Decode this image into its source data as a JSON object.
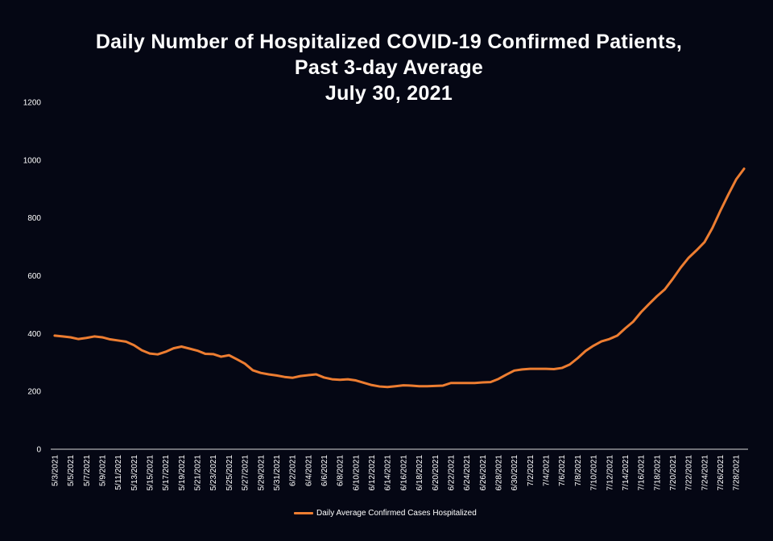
{
  "title_lines": [
    "Daily Number of Hospitalized COVID-19 Confirmed Patients,",
    "Past 3-day Average",
    "July 30, 2021"
  ],
  "chart_data": {
    "type": "line",
    "title": "Daily Number of Hospitalized COVID-19 Confirmed Patients, Past 3-day Average July 30, 2021",
    "xlabel": "",
    "ylabel": "",
    "ylim": [
      0,
      1200
    ],
    "yticks": [
      0,
      200,
      400,
      600,
      800,
      1000,
      1200
    ],
    "xtick_labels": [
      "5/3/2021",
      "5/5/2021",
      "5/7/2021",
      "5/9/2021",
      "5/11/2021",
      "5/13/2021",
      "5/15/2021",
      "5/17/2021",
      "5/19/2021",
      "5/21/2021",
      "5/23/2021",
      "5/25/2021",
      "5/27/2021",
      "5/29/2021",
      "5/31/2021",
      "6/2/2021",
      "6/4/2021",
      "6/6/2021",
      "6/8/2021",
      "6/10/2021",
      "6/12/2021",
      "6/14/2021",
      "6/16/2021",
      "6/18/2021",
      "6/20/2021",
      "6/22/2021",
      "6/24/2021",
      "6/26/2021",
      "6/28/2021",
      "6/30/2021",
      "7/2/2021",
      "7/4/2021",
      "7/6/2021",
      "7/8/2021",
      "7/10/2021",
      "7/12/2021",
      "7/14/2021",
      "7/16/2021",
      "7/18/2021",
      "7/20/2021",
      "7/22/2021",
      "7/24/2021",
      "7/26/2021",
      "7/28/2021"
    ],
    "color": "#ED7D31",
    "legend": "top-bottom-center",
    "series": [
      {
        "name": "Daily Average Confirmed Cases Hospitalized",
        "start_date": "5/3/2021",
        "values": [
          393,
          390,
          387,
          381,
          385,
          390,
          387,
          380,
          376,
          372,
          360,
          342,
          331,
          328,
          337,
          349,
          355,
          348,
          341,
          330,
          329,
          320,
          325,
          311,
          296,
          273,
          264,
          259,
          255,
          250,
          247,
          253,
          256,
          259,
          248,
          242,
          240,
          242,
          238,
          230,
          222,
          217,
          215,
          218,
          221,
          220,
          218,
          218,
          219,
          220,
          229,
          229,
          229,
          229,
          231,
          232,
          243,
          258,
          272,
          276,
          278,
          278,
          278,
          277,
          281,
          293,
          315,
          340,
          358,
          373,
          381,
          393,
          418,
          441,
          474,
          502,
          529,
          553,
          589,
          628,
          662,
          688,
          716,
          765,
          824,
          880,
          933,
          970
        ]
      }
    ]
  }
}
